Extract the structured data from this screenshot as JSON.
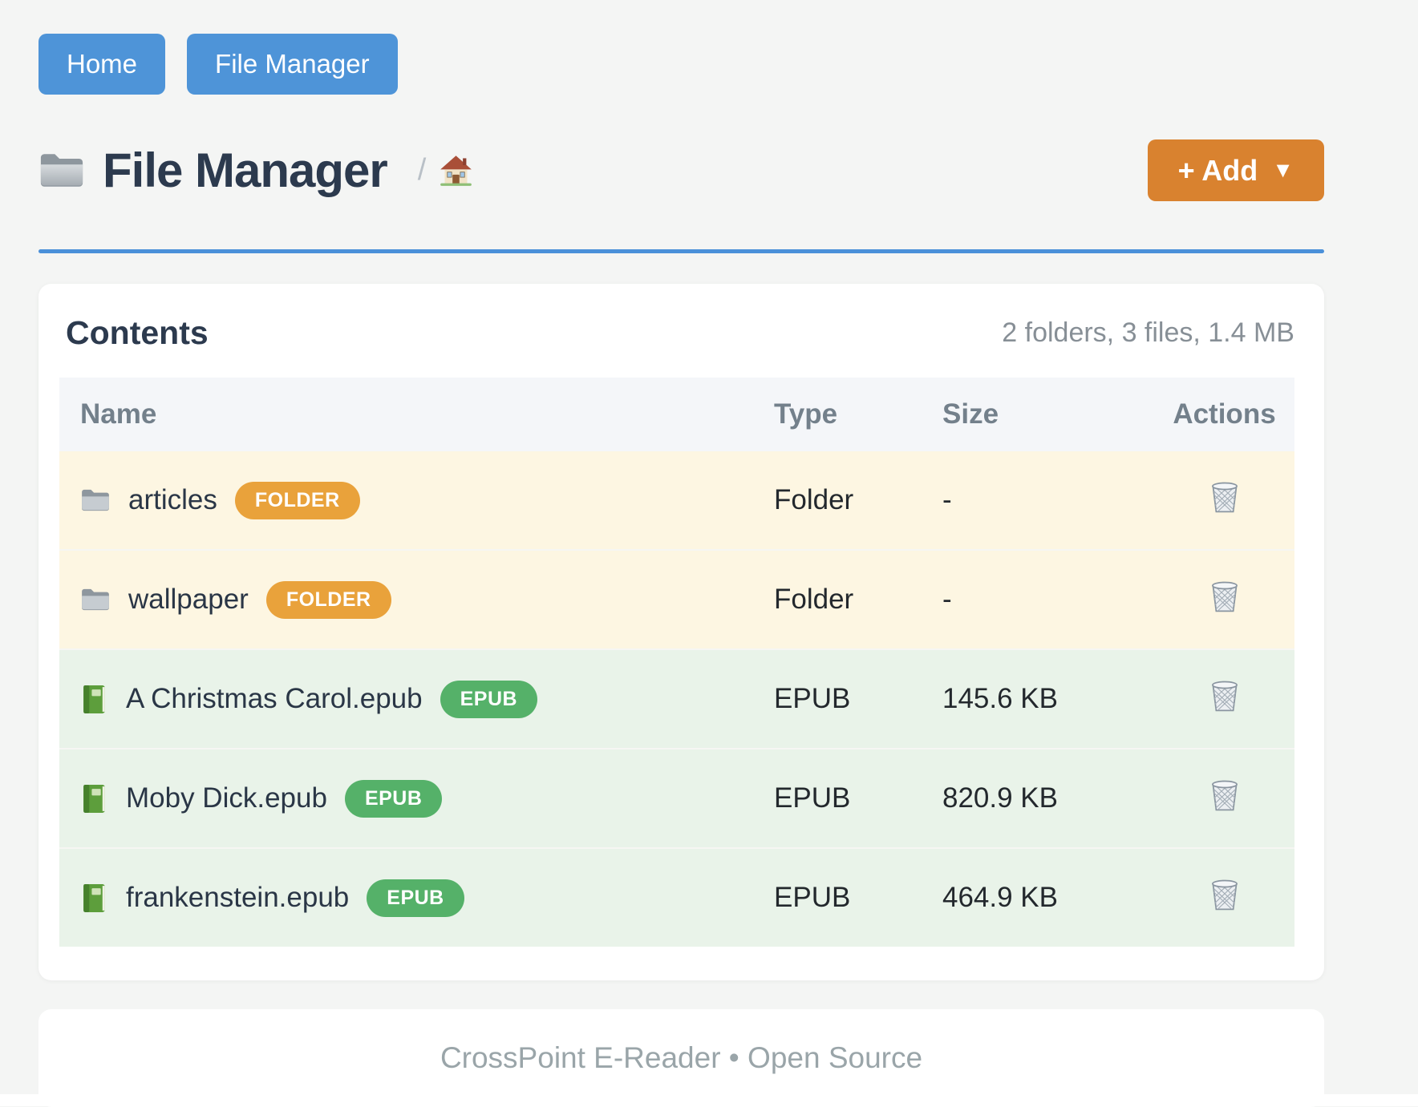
{
  "nav": {
    "buttons": [
      {
        "label": "Home"
      },
      {
        "label": "File Manager"
      }
    ]
  },
  "header": {
    "title": "File Manager",
    "breadcrumb_separator": "/",
    "add_button_label": "+ Add",
    "add_button_caret": "▼"
  },
  "contents": {
    "heading": "Contents",
    "summary": "2 folders, 3 files, 1.4 MB",
    "table": {
      "columns": [
        "Name",
        "Type",
        "Size",
        "Actions"
      ],
      "rows": [
        {
          "name": "articles",
          "badge": "FOLDER",
          "kind": "folder",
          "type": "Folder",
          "size": "-"
        },
        {
          "name": "wallpaper",
          "badge": "FOLDER",
          "kind": "folder",
          "type": "Folder",
          "size": "-"
        },
        {
          "name": "A Christmas Carol.epub",
          "badge": "EPUB",
          "kind": "epub",
          "type": "EPUB",
          "size": "145.6 KB"
        },
        {
          "name": "Moby Dick.epub",
          "badge": "EPUB",
          "kind": "epub",
          "type": "EPUB",
          "size": "820.9 KB"
        },
        {
          "name": "frankenstein.epub",
          "badge": "EPUB",
          "kind": "epub",
          "type": "EPUB",
          "size": "464.9 KB"
        }
      ]
    }
  },
  "footer": {
    "text": "CrossPoint E-Reader • Open Source"
  },
  "icons": {
    "title": "folder-icon",
    "breadcrumb": "house-icon",
    "folder_row": "folder-icon",
    "epub_row": "green-book-icon",
    "delete": "trash-icon"
  },
  "colors": {
    "primary_blue": "#4E94D8",
    "rule_blue": "#4A90D9",
    "accent_orange": "#D9822F",
    "badge_orange": "#E9A23B",
    "badge_green": "#55B169",
    "row_folder_bg": "#FDF6E2",
    "row_epub_bg": "#E9F3E9",
    "page_bg": "#F4F5F4"
  }
}
